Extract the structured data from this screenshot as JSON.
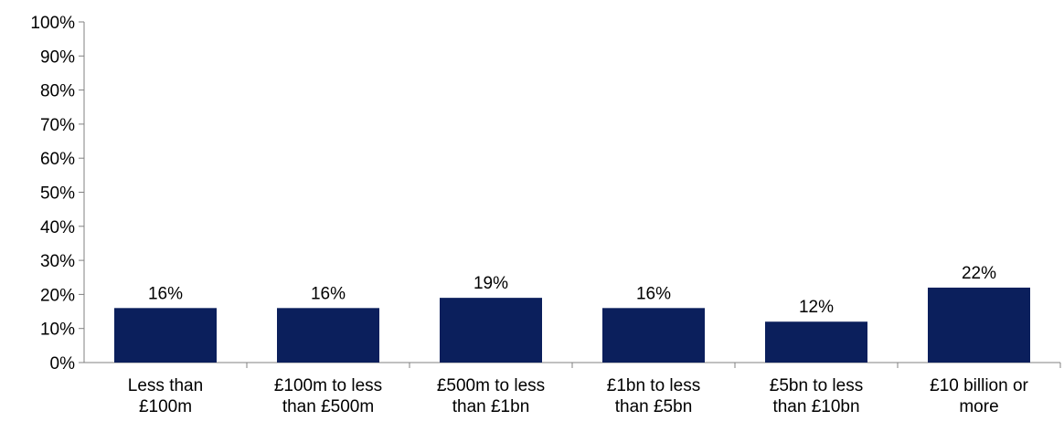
{
  "chart_data": {
    "type": "bar",
    "title": "",
    "xlabel": "",
    "ylabel": "",
    "categories": [
      [
        "Less than",
        "£100m"
      ],
      [
        "£100m to less",
        "than £500m"
      ],
      [
        "£500m to less",
        "than £1bn"
      ],
      [
        "£1bn to less",
        "than £5bn"
      ],
      [
        "£5bn to less",
        "than £10bn"
      ],
      [
        "£10 billion or",
        "more"
      ]
    ],
    "values": [
      16,
      16,
      19,
      16,
      12,
      22
    ],
    "data_labels": [
      "16%",
      "16%",
      "19%",
      "16%",
      "12%",
      "22%"
    ],
    "ylim": [
      0,
      100
    ],
    "y_ticks": [
      0,
      10,
      20,
      30,
      40,
      50,
      60,
      70,
      80,
      90,
      100
    ],
    "y_tick_labels": [
      "0%",
      "10%",
      "20%",
      "30%",
      "40%",
      "50%",
      "60%",
      "70%",
      "80%",
      "90%",
      "100%"
    ],
    "grid": false,
    "legend": "none",
    "bar_color": "#0b1f5c"
  }
}
